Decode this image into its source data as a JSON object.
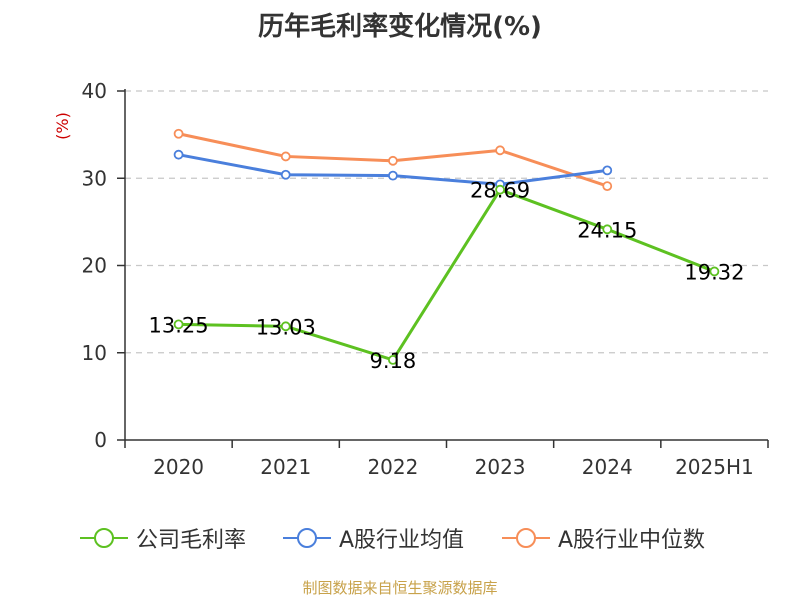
{
  "title": "历年毛利率变化情况(%)",
  "source_text": "制图数据来自恒生聚源数据库",
  "colors": {
    "series_company": "#5dc121",
    "series_avg": "#4a7fdc",
    "series_median": "#f78e58",
    "axis": "#333333",
    "grid": "#c8c8c8",
    "ylabel": "#cc0000",
    "source": "#c8a24a"
  },
  "chart_data": {
    "type": "line",
    "title": "历年毛利率变化情况(%)",
    "xlabel": "",
    "ylabel": "(%)",
    "categories": [
      "2020",
      "2021",
      "2022",
      "2023",
      "2024",
      "2025H1"
    ],
    "ylim": [
      0,
      40
    ],
    "yticks": [
      0,
      10,
      20,
      30,
      40
    ],
    "grid": "horizontal dashed",
    "legend_position": "bottom",
    "series": [
      {
        "name": "公司毛利率",
        "values": [
          13.25,
          13.03,
          9.18,
          28.69,
          24.15,
          19.32
        ],
        "labels": [
          "13.25",
          "13.03",
          "9.18",
          "28.69",
          "24.15",
          "19.32"
        ]
      },
      {
        "name": "A股行业均值",
        "values": [
          32.7,
          30.4,
          30.3,
          29.3,
          30.9,
          null
        ]
      },
      {
        "name": "A股行业中位数",
        "values": [
          35.1,
          32.5,
          32.0,
          33.2,
          29.1,
          null
        ]
      }
    ]
  }
}
